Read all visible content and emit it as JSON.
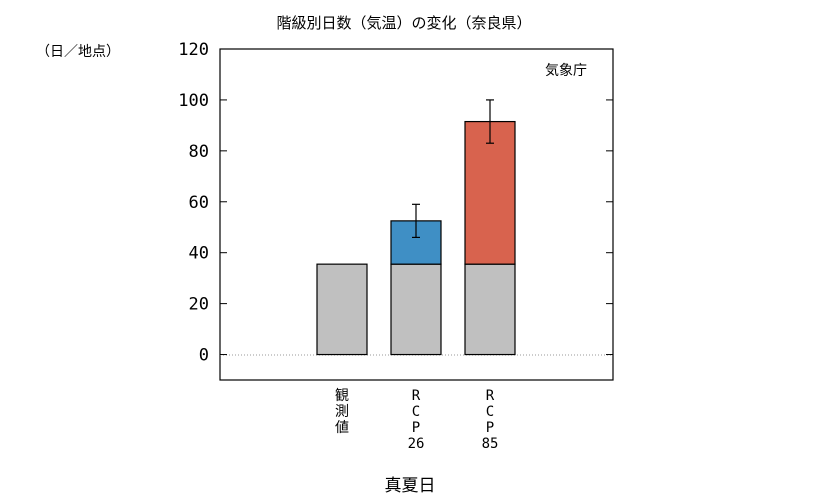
{
  "chart_data": {
    "type": "bar",
    "title": "階級別日数（気温）の変化（奈良県）",
    "ylabel": "（日／地点）",
    "xlabel": "真夏日",
    "source_label": "気象庁",
    "ylim": [
      -10,
      120
    ],
    "yticks": [
      0,
      20,
      40,
      60,
      80,
      100,
      120
    ],
    "categories": [
      "観測値",
      "RCP26",
      "RCP85"
    ],
    "category_labels": [
      [
        "観",
        "測",
        "値"
      ],
      [
        "R",
        "C",
        "P",
        "26"
      ],
      [
        "R",
        "C",
        "P",
        "85"
      ]
    ],
    "series": [
      {
        "values": [
          35.5,
          35.5,
          35.5
        ]
      },
      {
        "values": [
          0,
          17,
          56
        ]
      }
    ],
    "totals": [
      35.5,
      52.5,
      91.5
    ],
    "error_bars": [
      null,
      {
        "low": 46,
        "high": 59
      },
      {
        "low": 83,
        "high": 100
      }
    ],
    "colors": {
      "observed": "#c0c0c0",
      "rcp26": "#3f8fc5",
      "rcp85": "#d8634e",
      "zero_line": "#9a9a9a",
      "frame": "#000000"
    },
    "grid": false
  }
}
